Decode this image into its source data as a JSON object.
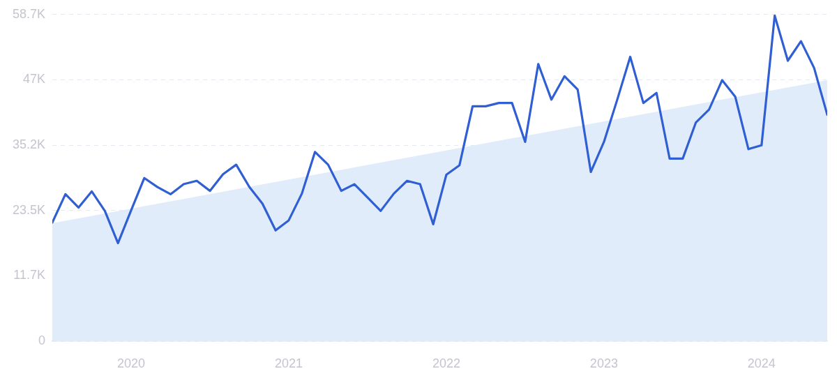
{
  "chart_data": {
    "type": "line",
    "x": [
      "2019-07",
      "2019-08",
      "2019-09",
      "2019-10",
      "2019-11",
      "2019-12",
      "2020-01",
      "2020-02",
      "2020-03",
      "2020-04",
      "2020-05",
      "2020-06",
      "2020-07",
      "2020-08",
      "2020-09",
      "2020-10",
      "2020-11",
      "2020-12",
      "2021-01",
      "2021-02",
      "2021-03",
      "2021-04",
      "2021-05",
      "2021-06",
      "2021-07",
      "2021-08",
      "2021-09",
      "2021-10",
      "2021-11",
      "2021-12",
      "2022-01",
      "2022-02",
      "2022-03",
      "2022-04",
      "2022-05",
      "2022-06",
      "2022-07",
      "2022-08",
      "2022-09",
      "2022-10",
      "2022-11",
      "2022-12",
      "2023-01",
      "2023-02",
      "2023-03",
      "2023-04",
      "2023-05",
      "2023-06",
      "2023-07",
      "2023-08",
      "2023-09",
      "2023-10",
      "2023-11",
      "2023-12",
      "2024-01",
      "2024-02",
      "2024-03",
      "2024-04",
      "2024-05",
      "2024-06"
    ],
    "series": [
      {
        "type": "area",
        "color": "#e1ecfb",
        "x": [
          "2019-07",
          "2024-06"
        ],
        "values": [
          21200,
          46900
        ]
      },
      {
        "color": "#2f5fd3",
        "values": [
          21300,
          26400,
          24000,
          26900,
          23400,
          17600,
          23500,
          29300,
          27700,
          26400,
          28200,
          28800,
          27000,
          30000,
          31700,
          27700,
          24700,
          19900,
          21700,
          26500,
          34000,
          31700,
          27000,
          28200,
          25800,
          23400,
          26500,
          28800,
          28200,
          21000,
          29900,
          31600,
          42200,
          42200,
          42800,
          42800,
          35800,
          49800,
          43400,
          47600,
          45200,
          30400,
          35800,
          43300,
          51100,
          42800,
          44600,
          32800,
          32800,
          39300,
          41600,
          46900,
          43900,
          34500,
          35200,
          58500,
          50400,
          53900,
          49100,
          40700
        ]
      }
    ],
    "xlim": [
      "2019-07",
      "2024-06"
    ],
    "xticks": [
      "2020",
      "2021",
      "2022",
      "2023",
      "2024"
    ],
    "ylim": [
      0,
      58700
    ],
    "yticks": [
      0,
      {
        "value": 11740,
        "label": "11.7K"
      },
      {
        "value": 23480,
        "label": "23.5K"
      },
      {
        "value": 35220,
        "label": "35.2K"
      },
      {
        "value": 46960,
        "label": "47K"
      },
      {
        "value": 58700,
        "label": "58.7K"
      }
    ],
    "grid": "y",
    "legend": false
  }
}
